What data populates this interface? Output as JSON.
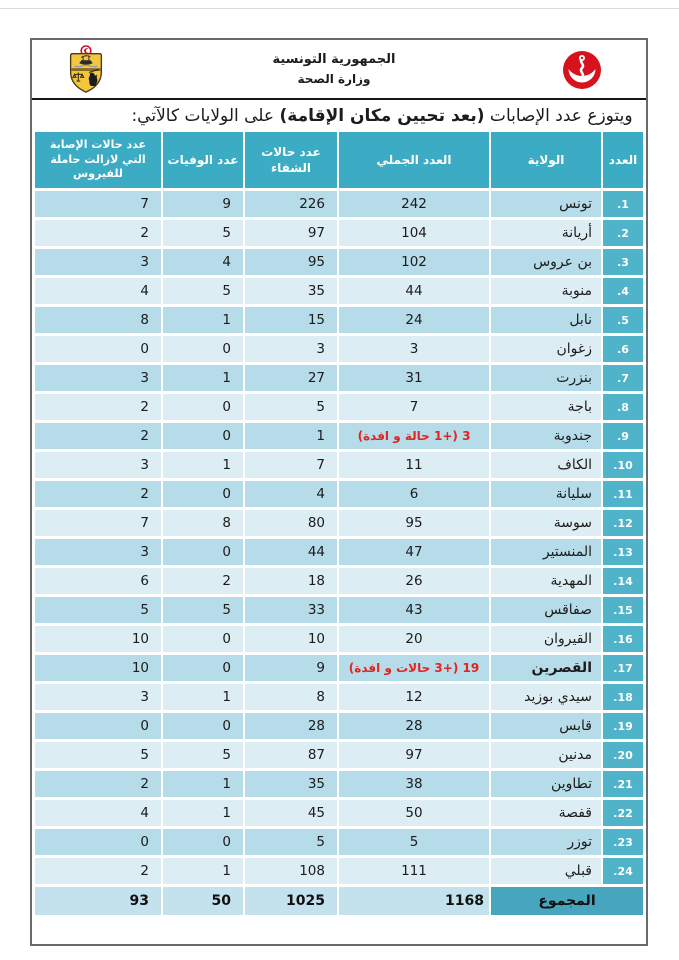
{
  "masthead": {
    "republic_line": "الجمهورية التونسية",
    "ministry_line": "وزارة الصحة",
    "left_logo": "tunisia-coat-of-arms",
    "right_logo": "ministry-of-health-emblem"
  },
  "title": {
    "prefix": "ويتوزع عدد الإصابات ",
    "emphasis": "(بعد تحيين مكان الإقامة)",
    "suffix": " على الولايات كالآتي:"
  },
  "table": {
    "columns": [
      {
        "key": "idx",
        "label": "العدد"
      },
      {
        "key": "gov",
        "label": "الولاية"
      },
      {
        "key": "total",
        "label": "العدد الجملي"
      },
      {
        "key": "recovered",
        "label": "عدد حالات الشفاء"
      },
      {
        "key": "deaths",
        "label": "عدد الوفيات"
      },
      {
        "key": "active",
        "label": "عدد حالات الإصابة التي لازالت حاملة للفيروس"
      }
    ],
    "rows": [
      {
        "idx": "1.",
        "gov": "تونس",
        "total": "242",
        "recovered": "226",
        "deaths": "9",
        "active": "7"
      },
      {
        "idx": "2.",
        "gov": "أريانة",
        "total": "104",
        "recovered": "97",
        "deaths": "5",
        "active": "2"
      },
      {
        "idx": "3.",
        "gov": "بن عروس",
        "total": "102",
        "recovered": "95",
        "deaths": "4",
        "active": "3"
      },
      {
        "idx": "4.",
        "gov": "منوبة",
        "total": "44",
        "recovered": "35",
        "deaths": "5",
        "active": "4"
      },
      {
        "idx": "5.",
        "gov": "نابل",
        "total": "24",
        "recovered": "15",
        "deaths": "1",
        "active": "8"
      },
      {
        "idx": "6.",
        "gov": "زغوان",
        "total": "3",
        "recovered": "3",
        "deaths": "0",
        "active": "0"
      },
      {
        "idx": "7.",
        "gov": "بنزرت",
        "total": "31",
        "recovered": "27",
        "deaths": "1",
        "active": "3"
      },
      {
        "idx": "8.",
        "gov": "باجة",
        "total": "7",
        "recovered": "5",
        "deaths": "0",
        "active": "2"
      },
      {
        "idx": "9.",
        "gov": "جندوبة",
        "total": "3 (+1 حالة و افدة)",
        "total_red": true,
        "recovered": "1",
        "deaths": "0",
        "active": "2"
      },
      {
        "idx": "10.",
        "gov": "الكاف",
        "total": "11",
        "recovered": "7",
        "deaths": "1",
        "active": "3"
      },
      {
        "idx": "11.",
        "gov": "سليانة",
        "total": "6",
        "recovered": "4",
        "deaths": "0",
        "active": "2"
      },
      {
        "idx": "12.",
        "gov": "سوسة",
        "total": "95",
        "recovered": "80",
        "deaths": "8",
        "active": "7"
      },
      {
        "idx": "13.",
        "gov": "المنستير",
        "total": "47",
        "recovered": "44",
        "deaths": "0",
        "active": "3"
      },
      {
        "idx": "14.",
        "gov": "المهدية",
        "total": "26",
        "recovered": "18",
        "deaths": "2",
        "active": "6"
      },
      {
        "idx": "15.",
        "gov": "صفاقس",
        "total": "43",
        "recovered": "33",
        "deaths": "5",
        "active": "5"
      },
      {
        "idx": "16.",
        "gov": "القيروان",
        "total": "20",
        "recovered": "10",
        "deaths": "0",
        "active": "10"
      },
      {
        "idx": "17.",
        "gov": "القصرين",
        "gov_bold": true,
        "total": "19 (+3 حالات و افدة)",
        "total_red": true,
        "recovered": "9",
        "deaths": "0",
        "active": "10"
      },
      {
        "idx": "18.",
        "gov": "سيدي بوزيد",
        "total": "12",
        "recovered": "8",
        "deaths": "1",
        "active": "3"
      },
      {
        "idx": "19.",
        "gov": "قابس",
        "total": "28",
        "recovered": "28",
        "deaths": "0",
        "active": "0"
      },
      {
        "idx": "20.",
        "gov": "مدنين",
        "total": "97",
        "recovered": "87",
        "deaths": "5",
        "active": "5"
      },
      {
        "idx": "21.",
        "gov": "تطاوين",
        "total": "38",
        "recovered": "35",
        "deaths": "1",
        "active": "2"
      },
      {
        "idx": "22.",
        "gov": "قفصة",
        "total": "50",
        "recovered": "45",
        "deaths": "1",
        "active": "4"
      },
      {
        "idx": "23.",
        "gov": "توزر",
        "total": "5",
        "recovered": "5",
        "deaths": "0",
        "active": "0"
      },
      {
        "idx": "24.",
        "gov": "قبلي",
        "total": "111",
        "recovered": "108",
        "deaths": "1",
        "active": "2"
      }
    ],
    "total_row": {
      "label": "المجموع",
      "total": "1168",
      "recovered": "1025",
      "deaths": "50",
      "active": "93"
    }
  },
  "colors": {
    "header_bg": "#3BACC4",
    "index_bg": "#4FB3C9",
    "total_label_bg": "#48A5BE",
    "row_dark": "#B6DBE9",
    "row_light": "#DCEDF4",
    "total_row_bg": "#C4E2EE",
    "accent_red": "#E32421",
    "frame_border": "#6A6A6A",
    "divider": "#141414"
  }
}
